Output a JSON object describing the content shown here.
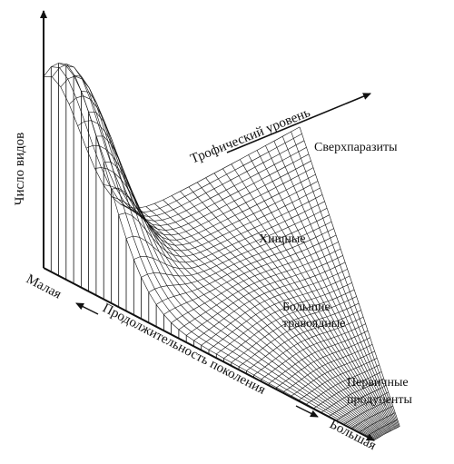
{
  "axes": {
    "vertical": "Число видов",
    "trophic": "Трофический уровень",
    "generation": "Продолжительность поколения",
    "small": "Малая",
    "large": "Большая"
  },
  "levels": [
    {
      "line1": "Сверхпаразиты",
      "line2": ""
    },
    {
      "line1": "Хищные",
      "line2": ""
    },
    {
      "line1": "Большие",
      "line2": "травоядные"
    },
    {
      "line1": "Первичные",
      "line2": "продуценты"
    }
  ]
}
